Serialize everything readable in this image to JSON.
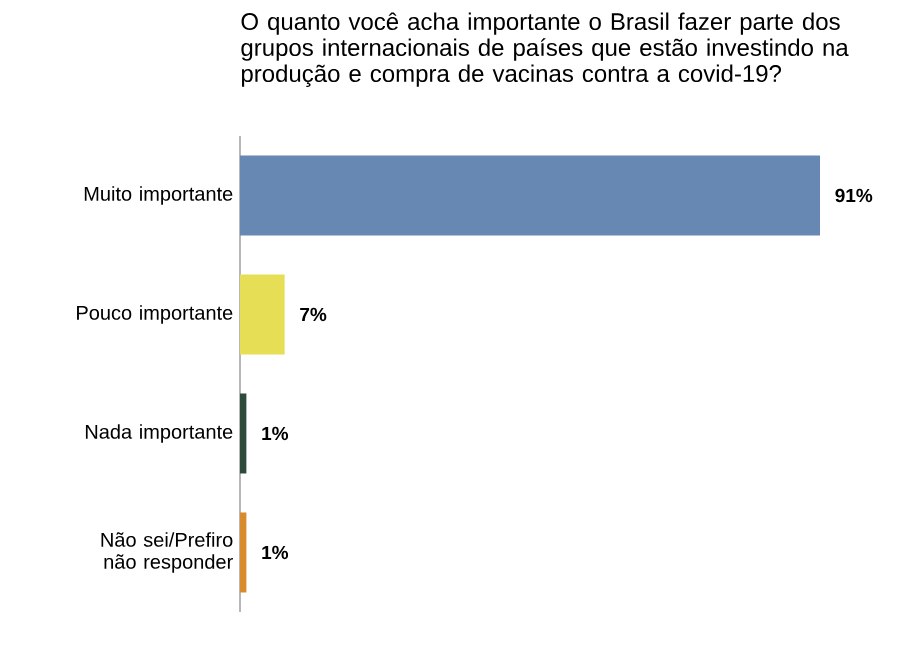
{
  "chart_data": {
    "type": "bar",
    "orientation": "horizontal",
    "title": "O quanto você acha importante o Brasil fazer parte dos grupos internacionais de países que estão investindo na produção e compra de vacinas contra a covid-19?",
    "categories": [
      "Muito importante",
      "Pouco importante",
      "Nada importante",
      "Não sei/Prefiro não responder"
    ],
    "values": [
      91,
      7,
      1,
      1
    ],
    "colors": [
      "#6788b2",
      "#e6df55",
      "#2e4a3b",
      "#d98a2b"
    ],
    "value_labels": [
      "91%",
      "7%",
      "1%",
      "1%"
    ]
  }
}
